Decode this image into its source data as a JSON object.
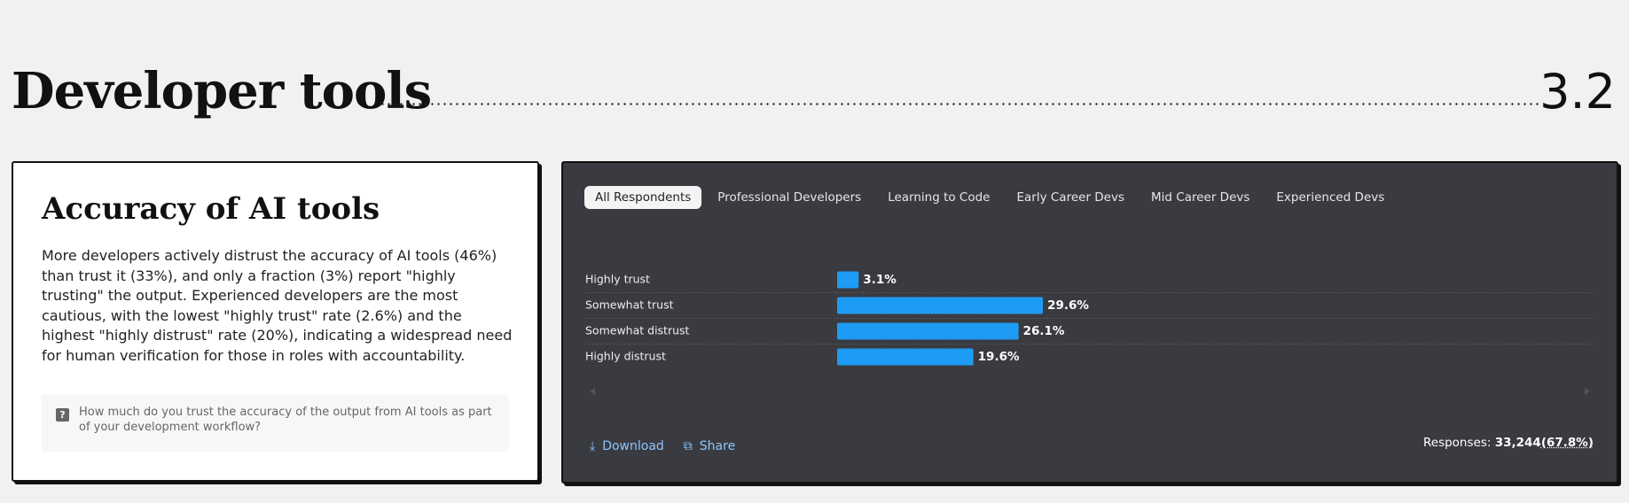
{
  "header": {
    "title": "Developer tools",
    "section": "3.2"
  },
  "card": {
    "title": "Accuracy of AI tools",
    "text": "More developers actively distrust the accuracy of AI tools (46%) than trust it (33%), and only a fraction (3%) report \"highly trusting\" the output. Experienced developers are the most cautious, with the lowest \"highly trust\" rate (2.6%) and the highest \"highly distrust\" rate (20%), indicating a widespread need for human verification for those in roles with accountability.",
    "question": "How much do you trust the accuracy of the output from AI tools as part of your development workflow?"
  },
  "tabs": [
    "All Respondents",
    "Professional Developers",
    "Learning to Code",
    "Early Career Devs",
    "Mid Career Devs",
    "Experienced Devs"
  ],
  "chart_data": {
    "type": "bar",
    "orientation": "horizontal",
    "color": "#1e9bf3",
    "categories": [
      "Highly trust",
      "Somewhat trust",
      "Somewhat distrust",
      "Highly distrust"
    ],
    "values": [
      3.1,
      29.6,
      26.1,
      19.6
    ],
    "value_labels": [
      "3.1%",
      "29.6%",
      "26.1%",
      "19.6%"
    ]
  },
  "actions": [
    "Download",
    "Share"
  ],
  "responses": {
    "label": "Responses:",
    "count": "33,244",
    "share": "(67.8%)"
  }
}
